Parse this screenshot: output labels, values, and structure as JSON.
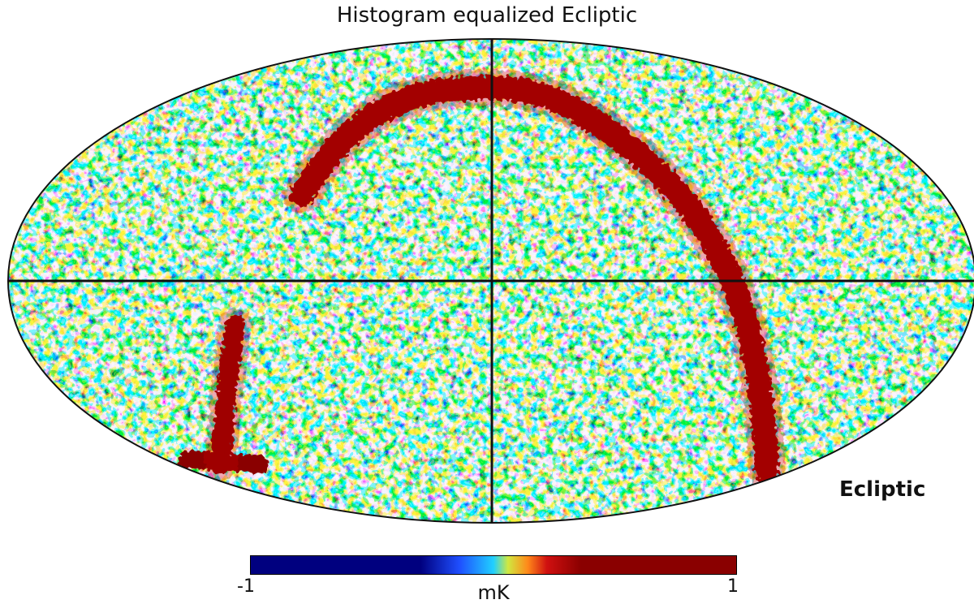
{
  "chart_data": {
    "type": "heatmap",
    "projection": "mollweide",
    "title": "Histogram equalized Ecliptic",
    "coordinate_system": "Ecliptic",
    "colormap": "jet",
    "colorbar": {
      "min_label": "-1",
      "max_label": "1",
      "min": -1,
      "max": 1,
      "unit": "mK",
      "orientation": "horizontal"
    },
    "graticule": "equator and central meridian",
    "colors": {
      "deep_blue": "#00007f",
      "blue": "#1f4fff",
      "cyan": "#20d0ff",
      "green_yellow": "#d0e840",
      "orange": "#ff8a1a",
      "red": "#d01010",
      "dark_red": "#8a0000"
    }
  }
}
